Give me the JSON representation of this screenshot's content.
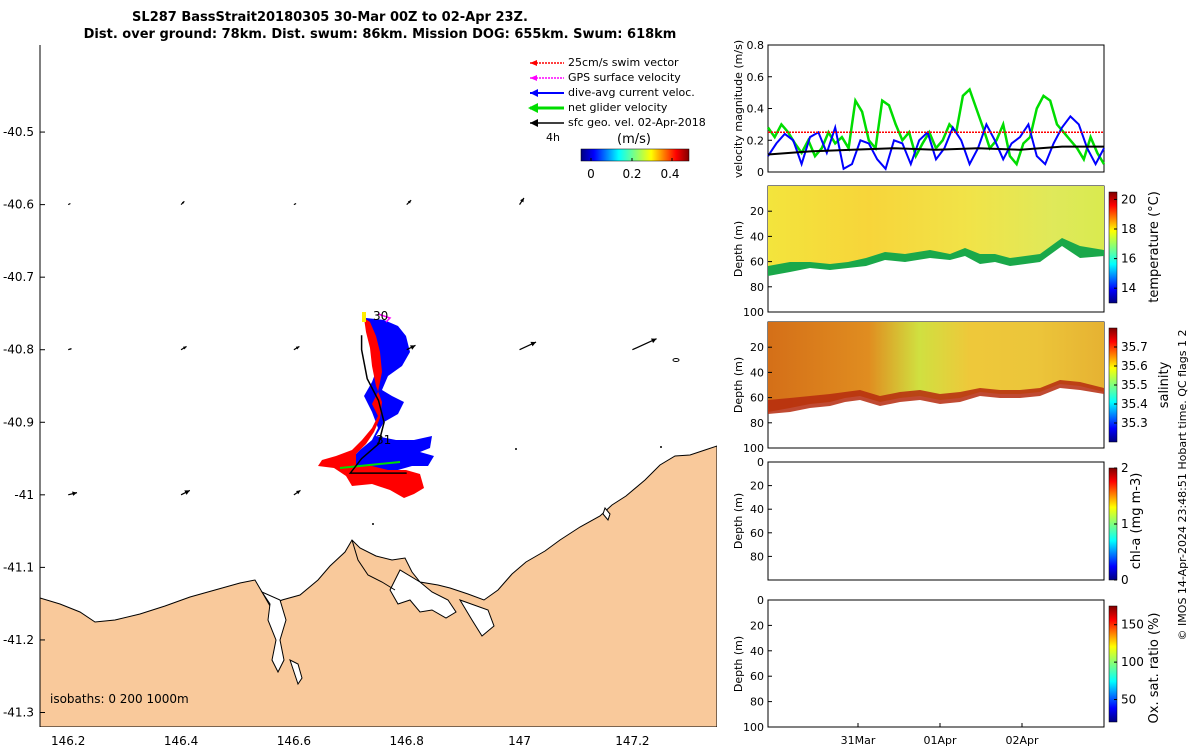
{
  "title_line1": "SL287 BassStrait20180305 30-Mar 00Z to 02-Apr 23Z.",
  "title_line2": "Dist. over ground: 78km. Dist. swum: 86km. Mission DOG: 655km. Swum: 618km",
  "footer_note": "© IMOS 14-Apr-2024 23:48:51 Hobart time. QC flags 1  2",
  "colors": {
    "land": "#f9c99b",
    "swim": "#ff0000",
    "gps": "#ff00ff",
    "dive": "#0000ff",
    "net": "#00dd00",
    "geo": "#000000",
    "track": "#000000",
    "temp_band": "#f2e23a",
    "sal_band": "#d98a1f"
  },
  "map": {
    "legend": {
      "swim": "25cm/s swim vector",
      "gps": "GPS surface velocity",
      "dive": "dive-avg current veloc.",
      "net": "net glider velocity",
      "geo": "sfc geo. vel. 02-Apr-2018"
    },
    "time_step": "4h",
    "colorbar_title": "(m/s)",
    "colorbar_ticks": [
      "0",
      "0.2",
      "0.4"
    ],
    "isobaths": "isobaths: 0   200  1000m",
    "day_labels": [
      "30",
      "31"
    ]
  },
  "chart_data": [
    {
      "type": "scatter",
      "title": "Glider track map",
      "xlabel": "",
      "ylabel": "",
      "xlim": [
        146.15,
        147.35
      ],
      "ylim": [
        -41.32,
        -40.38
      ],
      "x_ticks": [
        "146.2",
        "146.4",
        "146.6",
        "146.8",
        "147",
        "147.2"
      ],
      "y_ticks": [
        "-40.5",
        "-40.6",
        "-40.7",
        "-40.8",
        "-40.9",
        "-41",
        "-41.1",
        "-41.2",
        "-41.3"
      ],
      "track": {
        "lon": [
          146.72,
          146.72,
          146.73,
          146.75,
          146.76,
          146.75,
          146.72,
          146.7,
          146.74,
          146.8
        ],
        "lat": [
          -40.78,
          -40.8,
          -40.84,
          -40.87,
          -40.9,
          -40.93,
          -40.95,
          -40.97,
          -40.97,
          -40.97
        ]
      },
      "geo_vectors": {
        "lon": [
          146.2,
          146.4,
          146.6,
          146.8,
          147.0,
          146.2,
          146.4,
          146.6,
          146.8,
          147.0,
          147.2,
          146.2,
          146.4,
          146.6
        ],
        "lat": [
          -40.6,
          -40.6,
          -40.6,
          -40.6,
          -40.6,
          -40.8,
          -40.8,
          -40.8,
          -40.8,
          -40.8,
          -40.8,
          -41.0,
          -41.0,
          -41.0
        ],
        "u_ms": [
          0.02,
          0.03,
          0.02,
          0.04,
          0.04,
          0.03,
          0.05,
          0.05,
          0.08,
          0.15,
          0.22,
          0.08,
          0.08,
          0.06
        ],
        "v_ms": [
          0.01,
          0.03,
          0.01,
          0.04,
          0.06,
          0.01,
          0.03,
          0.03,
          0.04,
          0.07,
          0.1,
          0.02,
          0.04,
          0.04
        ]
      }
    },
    {
      "type": "line",
      "title": "",
      "xlabel": "",
      "ylabel": "velocity magnitude (m/s)",
      "xlim": [
        0,
        4
      ],
      "ylim": [
        0,
        0.8
      ],
      "y_ticks": [
        "0",
        "0.2",
        "0.4",
        "0.6",
        "0.8"
      ],
      "series": [
        {
          "name": "net glider velocity",
          "color_key": "net",
          "x": [
            0,
            0.08,
            0.16,
            0.24,
            0.32,
            0.4,
            0.48,
            0.56,
            0.64,
            0.72,
            0.8,
            0.88,
            0.96,
            1.04,
            1.12,
            1.2,
            1.28,
            1.36,
            1.44,
            1.52,
            1.6,
            1.68,
            1.76,
            1.84,
            1.92,
            2.0,
            2.08,
            2.16,
            2.24,
            2.32,
            2.4,
            2.48,
            2.56,
            2.64,
            2.72,
            2.8,
            2.88,
            2.96,
            3.04,
            3.12,
            3.2,
            3.28,
            3.36,
            3.44,
            3.52,
            3.6,
            3.68,
            3.76,
            3.84,
            3.92,
            4.0
          ],
          "values": [
            0.28,
            0.22,
            0.3,
            0.25,
            0.18,
            0.12,
            0.2,
            0.1,
            0.15,
            0.25,
            0.18,
            0.22,
            0.15,
            0.45,
            0.38,
            0.2,
            0.15,
            0.45,
            0.42,
            0.3,
            0.2,
            0.25,
            0.1,
            0.18,
            0.25,
            0.15,
            0.2,
            0.3,
            0.25,
            0.48,
            0.52,
            0.4,
            0.28,
            0.15,
            0.2,
            0.3,
            0.1,
            0.05,
            0.18,
            0.22,
            0.4,
            0.48,
            0.45,
            0.3,
            0.25,
            0.2,
            0.15,
            0.08,
            0.22,
            0.12,
            0.05
          ]
        },
        {
          "name": "dive-avg current veloc.",
          "color_key": "dive",
          "x": [
            0,
            0.1,
            0.2,
            0.3,
            0.4,
            0.5,
            0.6,
            0.7,
            0.8,
            0.9,
            1.0,
            1.1,
            1.2,
            1.3,
            1.4,
            1.5,
            1.6,
            1.7,
            1.8,
            1.9,
            2.0,
            2.1,
            2.2,
            2.3,
            2.4,
            2.5,
            2.6,
            2.7,
            2.8,
            2.9,
            3.0,
            3.1,
            3.2,
            3.3,
            3.4,
            3.5,
            3.6,
            3.7,
            3.8,
            3.9,
            4.0
          ],
          "values": [
            0.1,
            0.18,
            0.24,
            0.2,
            0.05,
            0.22,
            0.25,
            0.12,
            0.28,
            0.02,
            0.05,
            0.2,
            0.18,
            0.08,
            0.02,
            0.2,
            0.18,
            0.05,
            0.2,
            0.25,
            0.08,
            0.15,
            0.28,
            0.2,
            0.05,
            0.15,
            0.3,
            0.2,
            0.08,
            0.18,
            0.22,
            0.3,
            0.1,
            0.05,
            0.18,
            0.28,
            0.35,
            0.3,
            0.15,
            0.05,
            0.15
          ]
        },
        {
          "name": "sfc geo. vel.",
          "color_key": "geo",
          "x": [
            0,
            0.5,
            1.0,
            1.5,
            2.0,
            2.5,
            3.0,
            3.5,
            4.0
          ],
          "values": [
            0.11,
            0.13,
            0.14,
            0.15,
            0.14,
            0.15,
            0.14,
            0.16,
            0.16
          ]
        },
        {
          "name": "25cm/s swim vector",
          "color_key": "swim",
          "x": [
            0,
            4
          ],
          "values": [
            0.25,
            0.25
          ]
        }
      ]
    },
    {
      "type": "heatmap",
      "title": "",
      "xlabel": "",
      "ylabel": "Depth (m)",
      "ylim": [
        100,
        0
      ],
      "y_ticks": [
        "20",
        "40",
        "60",
        "80",
        "100"
      ],
      "colorbar_label": "temperature (°C)",
      "colorbar_ticks": [
        "20",
        "18",
        "16",
        "14"
      ],
      "colorbar_range": [
        13,
        20.5
      ]
    },
    {
      "type": "heatmap",
      "title": "",
      "xlabel": "",
      "ylabel": "Depth (m)",
      "ylim": [
        100,
        0
      ],
      "y_ticks": [
        "20",
        "40",
        "60",
        "80",
        "100"
      ],
      "colorbar_label": "salinity",
      "colorbar_ticks": [
        "35.7",
        "35.6",
        "35.5",
        "35.4",
        "35.3"
      ],
      "colorbar_range": [
        35.2,
        35.8
      ]
    },
    {
      "type": "heatmap",
      "title": "",
      "xlabel": "",
      "ylabel": "Depth (m)",
      "ylim": [
        100,
        0
      ],
      "y_ticks": [
        "0",
        "20",
        "40",
        "60",
        "80"
      ],
      "colorbar_label": "chl-a (mg m-3)",
      "colorbar_ticks": [
        "2",
        "1",
        "0"
      ],
      "colorbar_range": [
        0,
        2
      ]
    },
    {
      "type": "heatmap",
      "title": "",
      "xlabel": "",
      "ylabel": "Depth (m)",
      "ylim": [
        100,
        0
      ],
      "y_ticks": [
        "0",
        "20",
        "40",
        "60",
        "80",
        "100"
      ],
      "x_ticks": [
        "31Mar",
        "01Apr",
        "02Apr"
      ],
      "colorbar_label": "Ox. sat. ratio (%)",
      "colorbar_ticks": [
        "150",
        "100",
        "50"
      ],
      "colorbar_range": [
        20,
        175
      ]
    }
  ]
}
